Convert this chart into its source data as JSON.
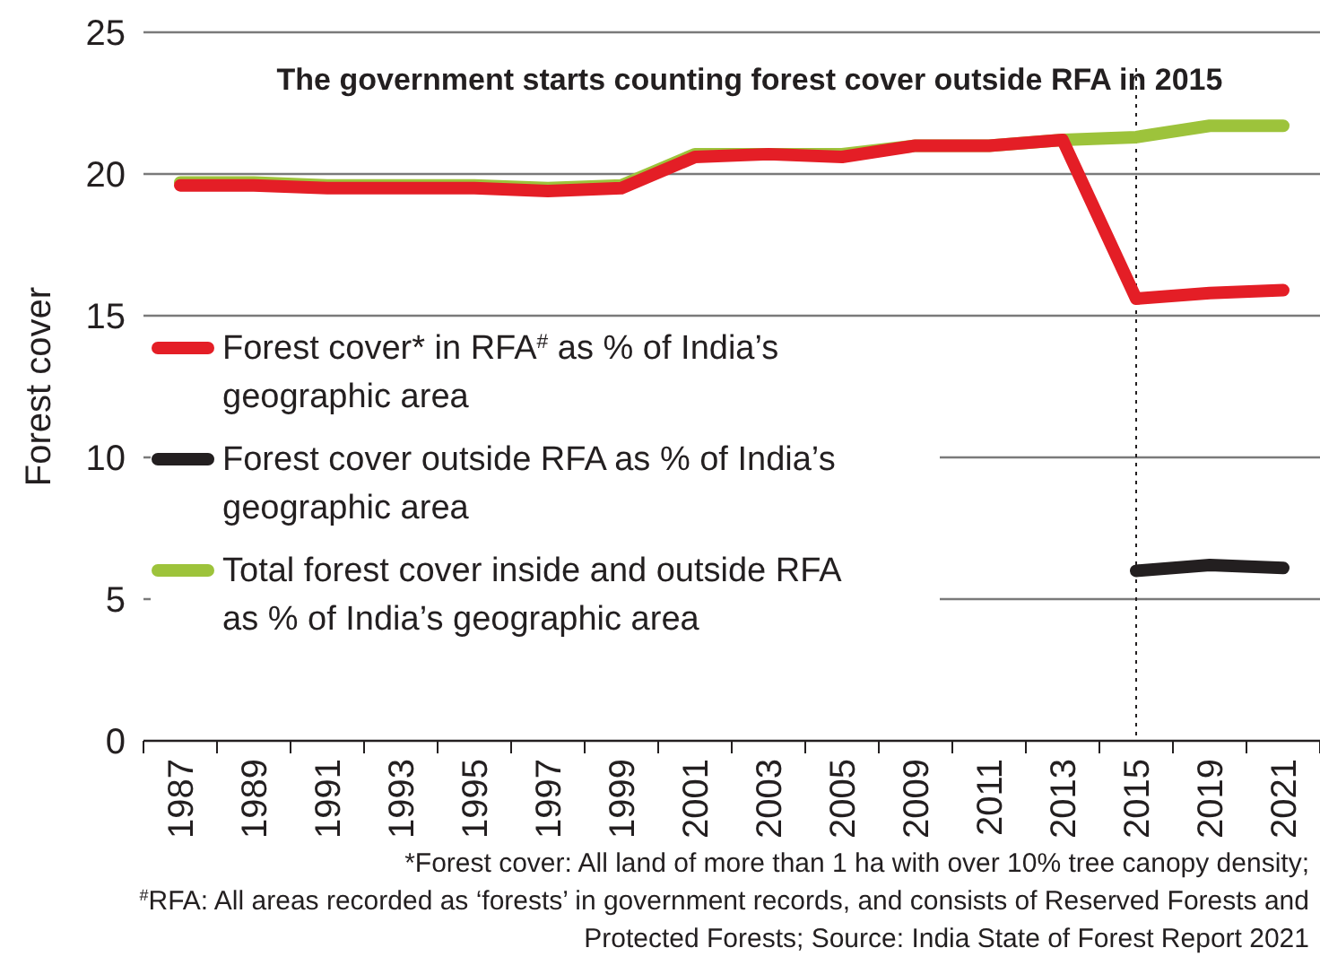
{
  "chart_data": {
    "type": "line",
    "title": "The government starts counting forest cover outside RFA in 2015",
    "ylabel": "Forest cover",
    "categories": [
      "1987",
      "1989",
      "1991",
      "1993",
      "1995",
      "1997",
      "1999",
      "2001",
      "2003",
      "2005",
      "2009",
      "2011",
      "2013",
      "2015",
      "2019",
      "2021"
    ],
    "series": [
      {
        "name": "Forest cover* in RFA$^{#}$ as % of India’s geographic area",
        "color": "#e41e26",
        "values": [
          19.6,
          19.6,
          19.5,
          19.5,
          19.5,
          19.4,
          19.5,
          20.6,
          20.7,
          20.6,
          21.0,
          21.0,
          21.2,
          15.6,
          15.8,
          15.9
        ]
      },
      {
        "name": "Forest cover outside RFA as % of India’s geographic area",
        "color": "#231f20",
        "values": [
          null,
          null,
          null,
          null,
          null,
          null,
          null,
          null,
          null,
          null,
          null,
          null,
          null,
          6.0,
          6.2,
          6.1
        ]
      },
      {
        "name": "Total forest cover inside and outside RFA as % of India’s geographic area",
        "color": "#9dc33b",
        "values": [
          19.7,
          19.7,
          19.6,
          19.6,
          19.6,
          19.5,
          19.6,
          20.7,
          20.7,
          20.7,
          21.0,
          21.0,
          21.2,
          21.3,
          21.7,
          21.7
        ]
      }
    ],
    "ylim": [
      0,
      25
    ],
    "yticks": [
      0,
      5,
      10,
      15,
      20,
      25
    ],
    "grid": "y",
    "legend": "left",
    "ref_lines": [
      {
        "axis": "x",
        "value": "2015",
        "line_style": "dotted",
        "color": "#231f20"
      }
    ],
    "annotations": [
      "*Forest cover: All land of more than 1 ha with over 10% tree canopy density;",
      "$^{#}$RFA: All areas recorded as ‘forests’ in government records, and consists of Reserved Forests and",
      "Protected Forests; Source: India State of Forest Report 2021"
    ]
  }
}
